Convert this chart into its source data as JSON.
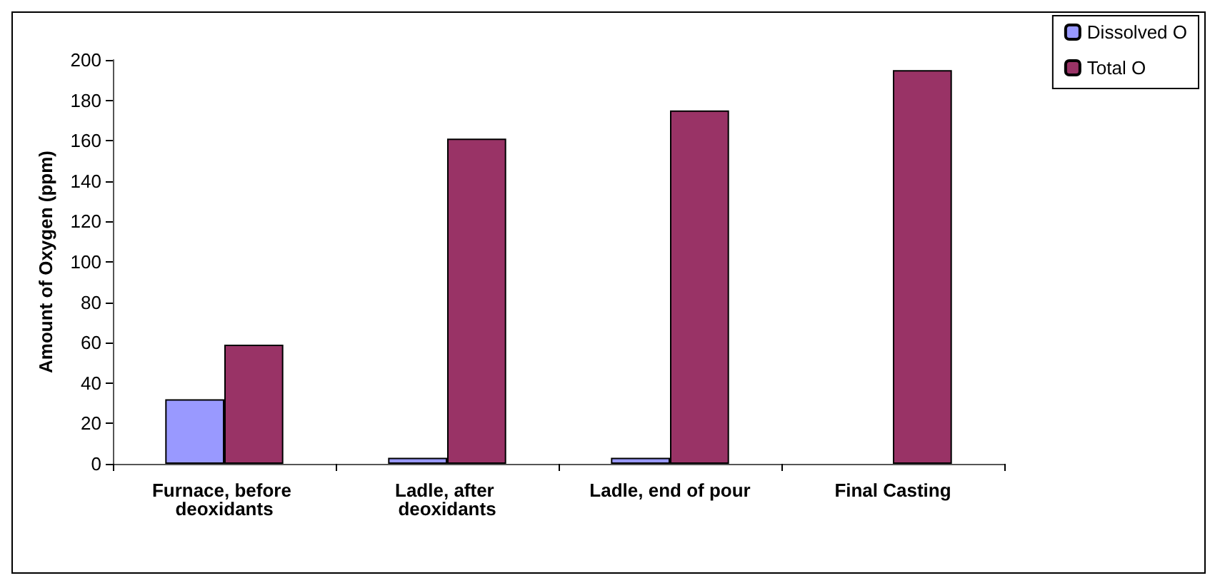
{
  "chart_data": {
    "type": "bar",
    "ylabel": "Amount of Oxygen (ppm)",
    "categories": [
      "Furnace, before deoxidants",
      "Ladle, after deoxidants",
      "Ladle, end of pour",
      "Final Casting"
    ],
    "series": [
      {
        "name": "Dissolved O",
        "color": "#9999ff",
        "values": [
          32,
          3,
          3,
          null
        ]
      },
      {
        "name": "Total O",
        "color": "#993366",
        "values": [
          59,
          161,
          175,
          195
        ]
      }
    ],
    "ylim": [
      0,
      200
    ],
    "yticks": [
      0,
      20,
      40,
      60,
      80,
      100,
      120,
      140,
      160,
      180,
      200
    ],
    "grid": false,
    "legend": "top right"
  }
}
